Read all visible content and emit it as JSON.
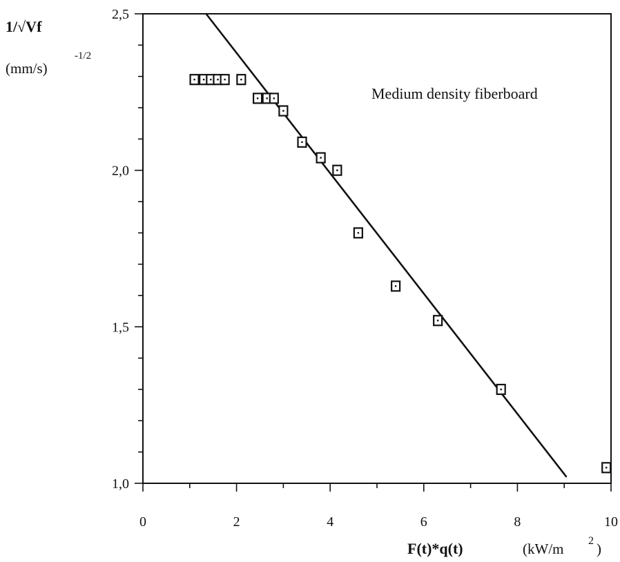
{
  "chart_data": {
    "type": "scatter",
    "annotation": "Medium density fiberboard",
    "ylabel": "1/√Vf",
    "yunit": "(mm/s)",
    "yunit_exp": "-1/2",
    "xlabel": "F(t)*q(t)",
    "xunit": "(kW/m",
    "xunit_exp": "2",
    "xunit_close": ")",
    "xlim": [
      0,
      10
    ],
    "ylim": [
      1.0,
      2.5
    ],
    "x_ticks": [
      {
        "value": 0,
        "label": "0"
      },
      {
        "value": 2,
        "label": "2"
      },
      {
        "value": 4,
        "label": "4"
      },
      {
        "value": 6,
        "label": "6"
      },
      {
        "value": 8,
        "label": "8"
      },
      {
        "value": 10,
        "label": "10"
      }
    ],
    "y_ticks": [
      {
        "value": 1.0,
        "label": "1,0"
      },
      {
        "value": 1.5,
        "label": "1,5"
      },
      {
        "value": 2.0,
        "label": "2,0"
      },
      {
        "value": 2.5,
        "label": "2,5"
      }
    ],
    "grid": false,
    "series": [
      {
        "marker": "square-dot",
        "points": [
          [
            1.1,
            2.29
          ],
          [
            1.3,
            2.29
          ],
          [
            1.45,
            2.29
          ],
          [
            1.6,
            2.29
          ],
          [
            1.75,
            2.29
          ],
          [
            2.1,
            2.29
          ],
          [
            2.45,
            2.23
          ],
          [
            2.65,
            2.23
          ],
          [
            2.8,
            2.23
          ],
          [
            3.0,
            2.19
          ],
          [
            3.4,
            2.09
          ],
          [
            3.8,
            2.04
          ],
          [
            4.15,
            2.0
          ],
          [
            4.6,
            1.8
          ],
          [
            5.4,
            1.63
          ],
          [
            6.3,
            1.52
          ],
          [
            7.65,
            1.3
          ],
          [
            9.9,
            1.05
          ]
        ]
      },
      {
        "type": "line",
        "points": [
          [
            1.35,
            2.5
          ],
          [
            9.05,
            1.02
          ]
        ]
      }
    ]
  }
}
